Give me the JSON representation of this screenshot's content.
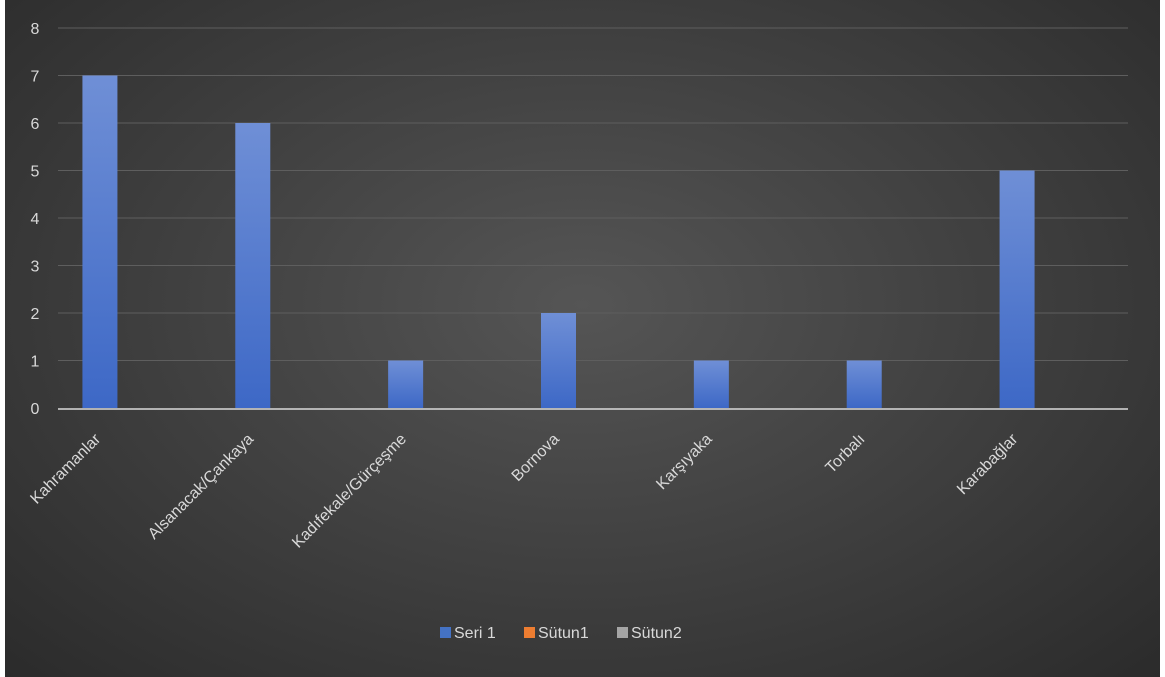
{
  "chart_data": {
    "type": "bar",
    "categories": [
      "Kahramanlar",
      "Alsanacak/Çankaya",
      "Kadıfekale/Gürçeşme",
      "Bornova",
      "Karşıyaka",
      "Torbalı",
      "Karabağlar"
    ],
    "series": [
      {
        "name": "Seri 1",
        "values": [
          7,
          6,
          1,
          2,
          1,
          1,
          5
        ],
        "color": "#4472c4"
      },
      {
        "name": "Sütun1",
        "values": [
          null,
          null,
          null,
          null,
          null,
          null,
          null
        ],
        "color": "#ed7d31"
      },
      {
        "name": "Sütun2",
        "values": [
          null,
          null,
          null,
          null,
          null,
          null,
          null
        ],
        "color": "#a5a5a5"
      }
    ],
    "yticks": [
      "0",
      "1",
      "2",
      "3",
      "4",
      "5",
      "6",
      "7",
      "8"
    ],
    "ylim": [
      0,
      8
    ],
    "grid": true,
    "legend": "bottom"
  }
}
